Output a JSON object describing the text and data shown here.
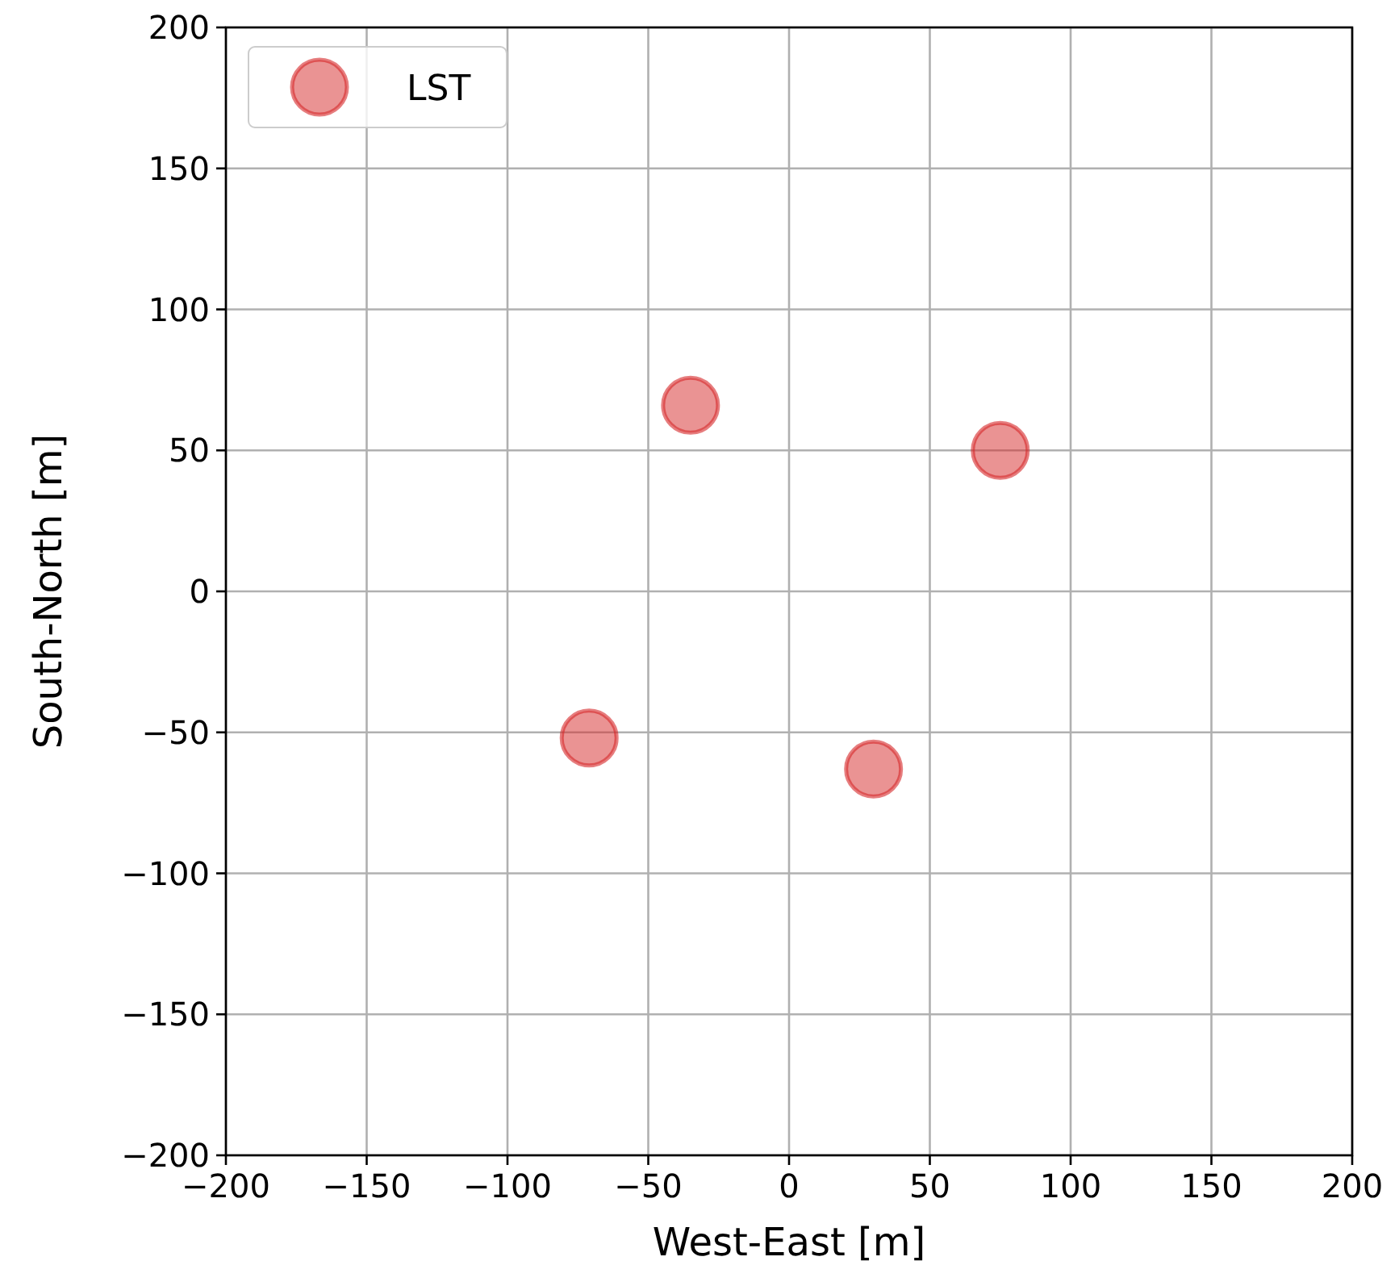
{
  "chart_data": {
    "type": "scatter",
    "xlabel": "West-East [m]",
    "ylabel": "South-North [m]",
    "xlim": [
      -200,
      200
    ],
    "ylim": [
      -200,
      200
    ],
    "xticks": [
      -200,
      -150,
      -100,
      -50,
      0,
      50,
      100,
      150,
      200
    ],
    "yticks": [
      -200,
      -150,
      -100,
      -50,
      0,
      50,
      100,
      150,
      200
    ],
    "grid": true,
    "legend": "top left",
    "marker": "circle",
    "series": [
      {
        "name": "LST",
        "color": "#d62728",
        "x": [
          -35,
          75,
          -71,
          30
        ],
        "values": [
          66,
          50,
          -52,
          -63
        ]
      }
    ]
  }
}
